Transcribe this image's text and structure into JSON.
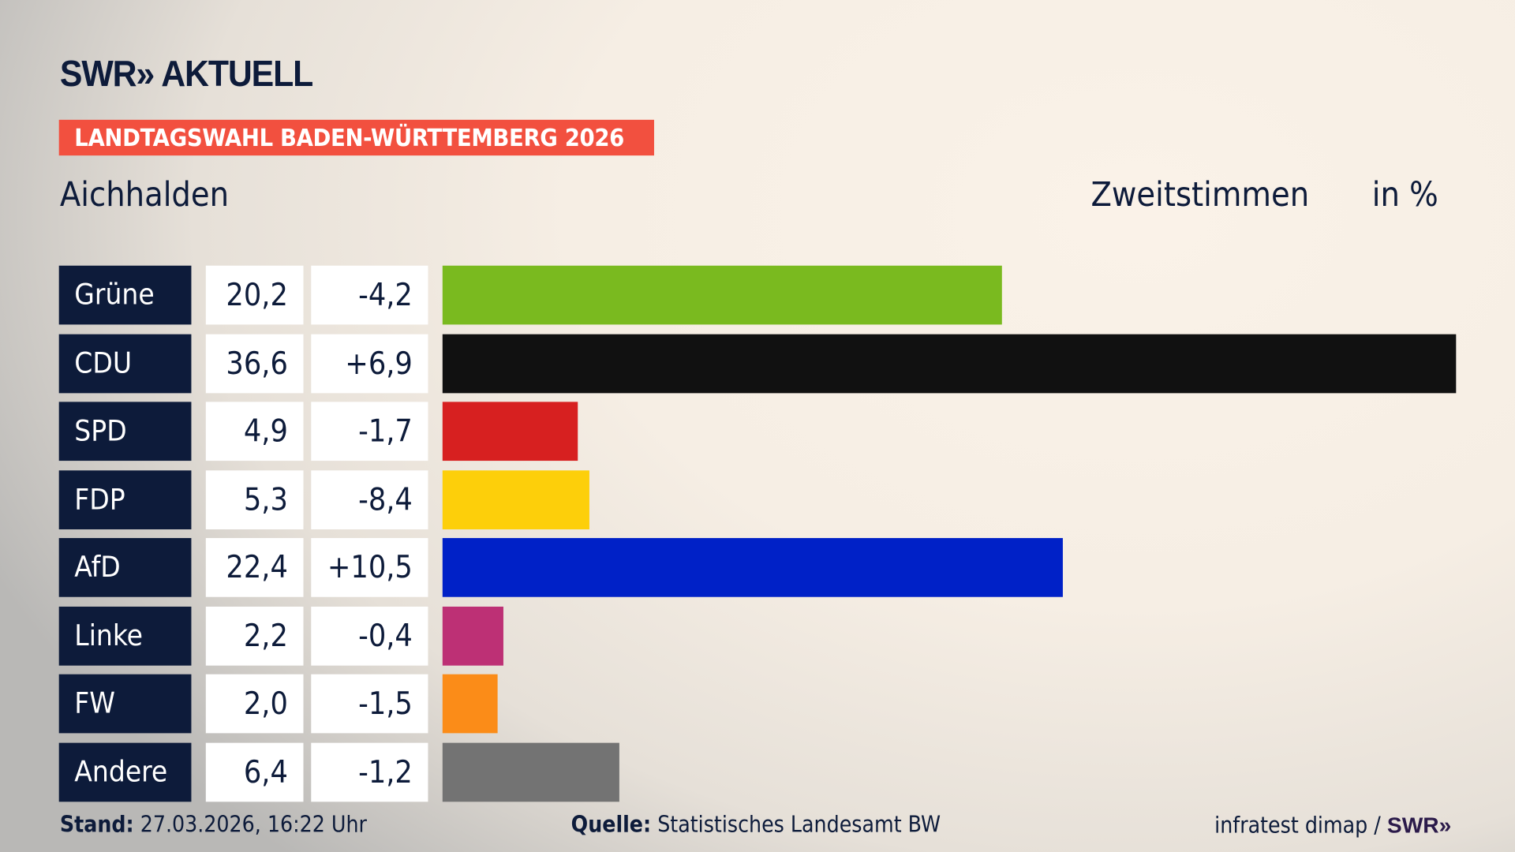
{
  "header": {
    "logo": "SWR» AKTUELL",
    "badge": "LANDTAGSWAHL BADEN-WÜRTTEMBERG 2026",
    "location": "Aichhalden",
    "vote_type": "Zweitstimmen",
    "unit": "in %"
  },
  "chart_data": {
    "type": "bar",
    "orientation": "horizontal",
    "categories": [
      "Grüne",
      "CDU",
      "SPD",
      "FDP",
      "AfD",
      "Linke",
      "FW",
      "Andere"
    ],
    "values": [
      20.2,
      36.6,
      4.9,
      5.3,
      22.4,
      2.2,
      2.0,
      6.4
    ],
    "value_labels": [
      "20,2",
      "36,6",
      "4,9",
      "5,3",
      "22,4",
      "2,2",
      "2,0",
      "6,4"
    ],
    "change_labels": [
      "-4,2",
      "+6,9",
      "-1,7",
      "-8,4",
      "+10,5",
      "-0,4",
      "-1,5",
      "-1,2"
    ],
    "changes": [
      -4.2,
      6.9,
      -1.7,
      -8.4,
      10.5,
      -0.4,
      -1.5,
      -1.2
    ],
    "colors": [
      "#7aba1f",
      "#111111",
      "#d72020",
      "#fdcf0a",
      "#0021c7",
      "#bd3075",
      "#fb8c18",
      "#737373"
    ],
    "xlim": [
      0,
      36.6
    ],
    "grid": false
  },
  "footer": {
    "stand_label": "Stand:",
    "stand_value": "27.03.2026, 16:22 Uhr",
    "source_label": "Quelle:",
    "source_value": "Statistisches Landesamt BW",
    "credit": "infratest dimap /",
    "credit_logo": "SWR»"
  }
}
